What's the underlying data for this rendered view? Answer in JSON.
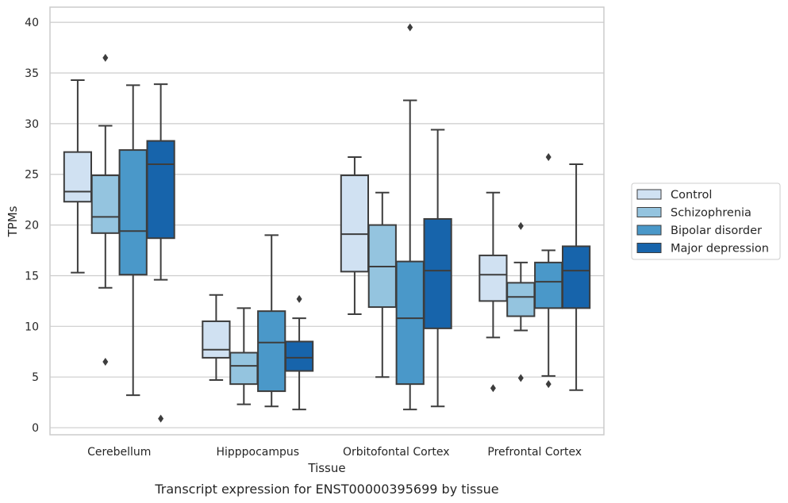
{
  "caption": "Transcript expression for ENST00000395699 by tissue",
  "chart_data": {
    "type": "box",
    "xlabel": "Tissue",
    "ylabel": "TPMs",
    "ylim": [
      -0.7,
      41.5
    ],
    "yticks": [
      0,
      5,
      10,
      15,
      20,
      25,
      30,
      35,
      40
    ],
    "grid": "horizontal",
    "legend_position": "right-outside",
    "categories": [
      "Cerebellum",
      "Hipppocampus",
      "Orbitofontal Cortex",
      "Prefrontal Cortex"
    ],
    "series": [
      {
        "name": "Control",
        "color": "#d0e1f2",
        "boxes": [
          {
            "whisker_low": 15.3,
            "q1": 22.3,
            "median": 23.3,
            "q3": 27.2,
            "whisker_high": 34.3,
            "outliers": []
          },
          {
            "whisker_low": 4.7,
            "q1": 6.9,
            "median": 7.7,
            "q3": 10.5,
            "whisker_high": 13.1,
            "outliers": []
          },
          {
            "whisker_low": 11.2,
            "q1": 15.4,
            "median": 19.1,
            "q3": 24.9,
            "whisker_high": 26.7,
            "outliers": []
          },
          {
            "whisker_low": 8.9,
            "q1": 12.5,
            "median": 15.1,
            "q3": 17.0,
            "whisker_high": 23.2,
            "outliers": [
              3.9
            ]
          }
        ]
      },
      {
        "name": "Schizophrenia",
        "color": "#94c4df",
        "boxes": [
          {
            "whisker_low": 13.8,
            "q1": 19.2,
            "median": 20.8,
            "q3": 24.9,
            "whisker_high": 29.8,
            "outliers": [
              36.5,
              6.5
            ]
          },
          {
            "whisker_low": 2.3,
            "q1": 4.3,
            "median": 6.1,
            "q3": 7.4,
            "whisker_high": 11.8,
            "outliers": []
          },
          {
            "whisker_low": 5.0,
            "q1": 11.9,
            "median": 15.9,
            "q3": 20.0,
            "whisker_high": 23.2,
            "outliers": []
          },
          {
            "whisker_low": 9.6,
            "q1": 11.0,
            "median": 12.9,
            "q3": 14.3,
            "whisker_high": 16.3,
            "outliers": [
              19.9,
              4.9
            ]
          }
        ]
      },
      {
        "name": "Bipolar disorder",
        "color": "#4a98c9",
        "boxes": [
          {
            "whisker_low": 3.2,
            "q1": 15.1,
            "median": 19.4,
            "q3": 27.4,
            "whisker_high": 33.8,
            "outliers": []
          },
          {
            "whisker_low": 2.1,
            "q1": 3.6,
            "median": 8.4,
            "q3": 11.5,
            "whisker_high": 19.0,
            "outliers": []
          },
          {
            "whisker_low": 1.8,
            "q1": 4.3,
            "median": 10.8,
            "q3": 16.4,
            "whisker_high": 32.3,
            "outliers": [
              39.5
            ]
          },
          {
            "whisker_low": 5.1,
            "q1": 11.8,
            "median": 14.4,
            "q3": 16.3,
            "whisker_high": 17.5,
            "outliers": [
              26.7,
              4.3
            ]
          }
        ]
      },
      {
        "name": "Major depression",
        "color": "#1764ab",
        "boxes": [
          {
            "whisker_low": 14.6,
            "q1": 18.7,
            "median": 26.0,
            "q3": 28.3,
            "whisker_high": 33.9,
            "outliers": [
              0.9
            ]
          },
          {
            "whisker_low": 1.8,
            "q1": 5.6,
            "median": 6.9,
            "q3": 8.5,
            "whisker_high": 10.8,
            "outliers": [
              12.7
            ]
          },
          {
            "whisker_low": 2.1,
            "q1": 9.8,
            "median": 15.5,
            "q3": 20.6,
            "whisker_high": 29.4,
            "outliers": []
          },
          {
            "whisker_low": 3.7,
            "q1": 11.8,
            "median": 15.5,
            "q3": 17.9,
            "whisker_high": 26.0,
            "outliers": []
          }
        ]
      }
    ]
  }
}
